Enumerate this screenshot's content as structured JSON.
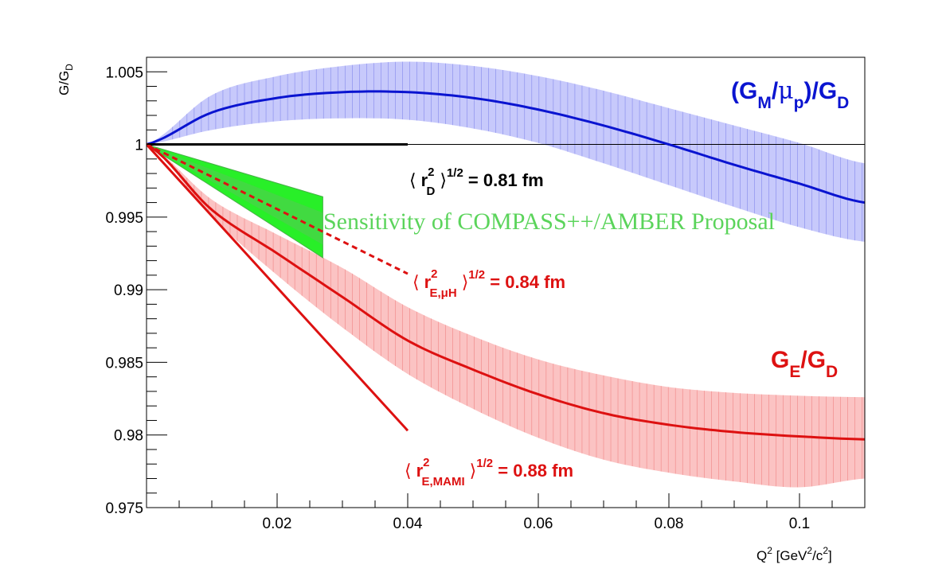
{
  "chart_data": {
    "type": "line",
    "xlabel": "Q2 [GeV2/c2]",
    "ylabel": "G/GD",
    "xlim": [
      0.0,
      0.11
    ],
    "ylim": [
      0.975,
      1.006
    ],
    "grid": false,
    "x_ticks": [
      0.02,
      0.04,
      0.06,
      0.08,
      0.1
    ],
    "x_tick_labels": [
      "0.02",
      "0.04",
      "0.06",
      "0.08",
      "0.1"
    ],
    "y_ticks": [
      0.975,
      0.98,
      0.985,
      0.99,
      0.995,
      1.0,
      1.005
    ],
    "y_tick_labels": [
      "0.975",
      "0.98",
      "0.985",
      "0.99",
      "0.995",
      "1",
      "1.005"
    ],
    "series": [
      {
        "name": "(GM/μp)/GD",
        "x": [
          0.0,
          0.01,
          0.02,
          0.03,
          0.04,
          0.05,
          0.06,
          0.07,
          0.08,
          0.09,
          0.1,
          0.11
        ],
        "y": [
          1.0,
          1.0022,
          1.0032,
          1.0036,
          1.0036,
          1.0032,
          1.0024,
          1.0013,
          1.0,
          0.9986,
          0.9973,
          0.996
        ],
        "band_low": [
          1.0,
          1.001,
          1.0016,
          1.0018,
          1.0017,
          1.0011,
          1.0001,
          0.9987,
          0.9972,
          0.9957,
          0.9943,
          0.9933
        ],
        "band_high": [
          1.0,
          1.0034,
          1.0047,
          1.0054,
          1.0057,
          1.0054,
          1.0047,
          1.0037,
          1.0025,
          1.0013,
          1.0001,
          0.9987
        ]
      },
      {
        "name": "GE/GD",
        "x": [
          0.0,
          0.01,
          0.02,
          0.03,
          0.04,
          0.05,
          0.06,
          0.07,
          0.08,
          0.09,
          0.1,
          0.11
        ],
        "y": [
          1.0,
          0.9955,
          0.9925,
          0.9895,
          0.9865,
          0.9845,
          0.9828,
          0.9815,
          0.9807,
          0.9802,
          0.9799,
          0.9797
        ],
        "band_low": [
          1.0,
          0.995,
          0.991,
          0.9874,
          0.9842,
          0.9818,
          0.9798,
          0.9783,
          0.9774,
          0.9768,
          0.9764,
          0.977
        ],
        "band_high": [
          1.0,
          0.9962,
          0.9938,
          0.9915,
          0.9888,
          0.9868,
          0.9852,
          0.9841,
          0.9833,
          0.9829,
          0.9827,
          0.9826
        ]
      }
    ],
    "reference_lines": [
      {
        "label": "⟨ r2D ⟩1/2 = 0.81 fm",
        "x": [
          0.0,
          0.04
        ],
        "y": [
          1.0,
          1.0
        ],
        "color": "#000000",
        "dash": false
      },
      {
        "label": "⟨ r2E,μH ⟩1/2 = 0.84 fm",
        "x": [
          0.0,
          0.04
        ],
        "y": [
          1.0,
          0.9911
        ],
        "color": "#dd1111",
        "dash": true
      },
      {
        "label": "⟨ r2E,MAMI ⟩1/2 = 0.88 fm",
        "x": [
          0.0,
          0.04
        ],
        "y": [
          1.0,
          0.9803
        ],
        "color": "#dd1111",
        "dash": false
      }
    ],
    "sensitivity_band": {
      "label": "Sensitivity of COMPASS++/AMBER Proposal",
      "x": [
        0.0,
        0.027
      ],
      "upper_end": 0.9964,
      "lower_end": 0.9922
    },
    "colors": {
      "blue": "#0a14d0",
      "blue_band": "#c7c9fb",
      "red": "#dd1111",
      "red_band": "#fbc3c3",
      "green": "#11ee11",
      "green_text": "#5bd45b"
    }
  },
  "labels": {
    "ylabel_main": "G/G",
    "ylabel_sub": "D",
    "xlabel_main": "Q",
    "xlabel_sup": "2",
    "xlabel_rest1": " [GeV",
    "xlabel_sup2": "2",
    "xlabel_rest2": "/c",
    "xlabel_sup3": "2",
    "xlabel_close": "]",
    "gm_open": "(G",
    "gm_sub": "M",
    "gm_slash": "/",
    "gm_mu": "μ",
    "gm_p": "p",
    "gm_close": ")/G",
    "gm_d": "D",
    "ge_main": "G",
    "ge_sub": "E",
    "ge_slash": "/G",
    "ge_d": "D",
    "rd_lang": "⟨",
    "rd_r": "r",
    "rd_sup": "2",
    "rd_sub": "D",
    "rd_rang": "⟩",
    "rd_pow": "1/2",
    "rd_val": " = 0.81 fm",
    "rmu_lang": "⟨",
    "rmu_r": "r",
    "rmu_sup": "2",
    "rmu_sub": "E,μH",
    "rmu_rang": "⟩",
    "rmu_pow": "1/2",
    "rmu_val": " = 0.84 fm",
    "rma_lang": "⟨",
    "rma_r": "r",
    "rma_sup": "2",
    "rma_sub": "E,MAMI",
    "rma_rang": "⟩",
    "rma_pow": "1/2",
    "rma_val": " = 0.88 fm",
    "sensitivity": "Sensitivity of COMPASS++/AMBER Proposal"
  }
}
